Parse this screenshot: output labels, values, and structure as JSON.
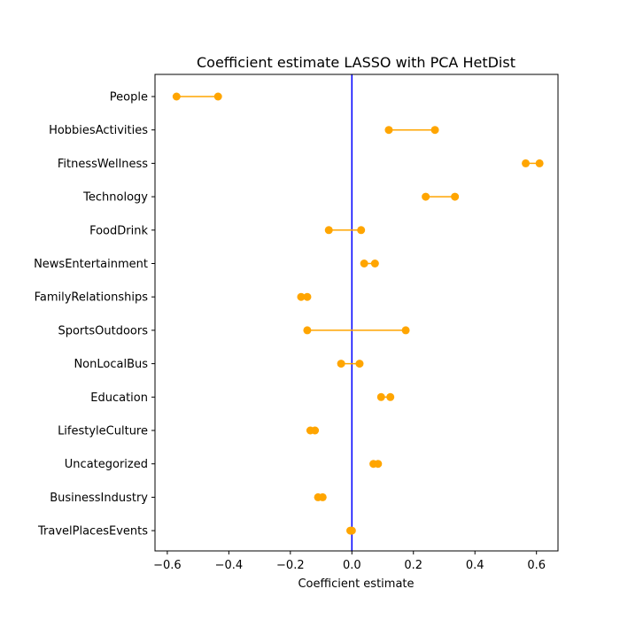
{
  "chart_data": {
    "type": "scatter",
    "title": "Coefficient estimate LASSO  with PCA HetDist",
    "xlabel": "Coefficient estimate",
    "ylabel": "",
    "xlim": [
      -0.64,
      0.67
    ],
    "x_ticks": [
      "−0.6",
      "−0.4",
      "−0.2",
      "0.0",
      "0.2",
      "0.4",
      "0.6"
    ],
    "reference_line": {
      "x": 0,
      "color": "#0000ff"
    },
    "colors": {
      "series": "#ffa500",
      "reference": "#0000ff"
    },
    "grid": false,
    "categories": [
      "People",
      "HobbiesActivities",
      "FitnessWellness",
      "Technology",
      "FoodDrink",
      "NewsEntertainment",
      "FamilyRelationships",
      "SportsOutdoors",
      "NonLocalBus",
      "Education",
      "LifestyleCulture",
      "Uncategorized",
      "BusinessIndustry",
      "TravelPlacesEvents"
    ],
    "intervals": [
      [
        -0.57,
        -0.435
      ],
      [
        0.12,
        0.27
      ],
      [
        0.565,
        0.61
      ],
      [
        0.24,
        0.335
      ],
      [
        -0.075,
        0.03
      ],
      [
        0.04,
        0.075
      ],
      [
        -0.165,
        -0.145
      ],
      [
        -0.145,
        0.175
      ],
      [
        -0.035,
        0.025
      ],
      [
        0.095,
        0.125
      ],
      [
        -0.135,
        -0.12
      ],
      [
        0.07,
        0.085
      ],
      [
        -0.11,
        -0.095
      ],
      [
        -0.005,
        0.0
      ]
    ]
  }
}
